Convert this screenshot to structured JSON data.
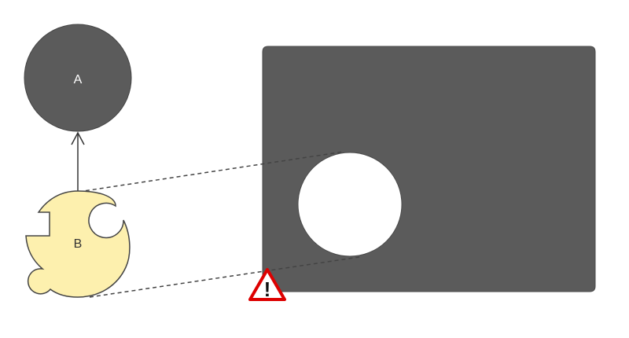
{
  "nodes": {
    "a": {
      "label": "A",
      "fill": "#5b5b5b",
      "label_color": "#ffffff"
    },
    "b": {
      "label": "B",
      "fill": "#fdf0ae",
      "label_color": "#333333"
    }
  },
  "detail_panel": {
    "fill": "#5b5b5b",
    "hole_fill": "#ffffff"
  },
  "connector": {
    "stroke": "#444444",
    "style": "dashed"
  },
  "arrow": {
    "from": "B",
    "to": "A",
    "stroke": "#333333"
  },
  "warning": {
    "icon": "warning-triangle-icon",
    "border_color": "#dd0000",
    "fill": "#ffffff",
    "glyph": "!",
    "glyph_color": "#111111"
  }
}
